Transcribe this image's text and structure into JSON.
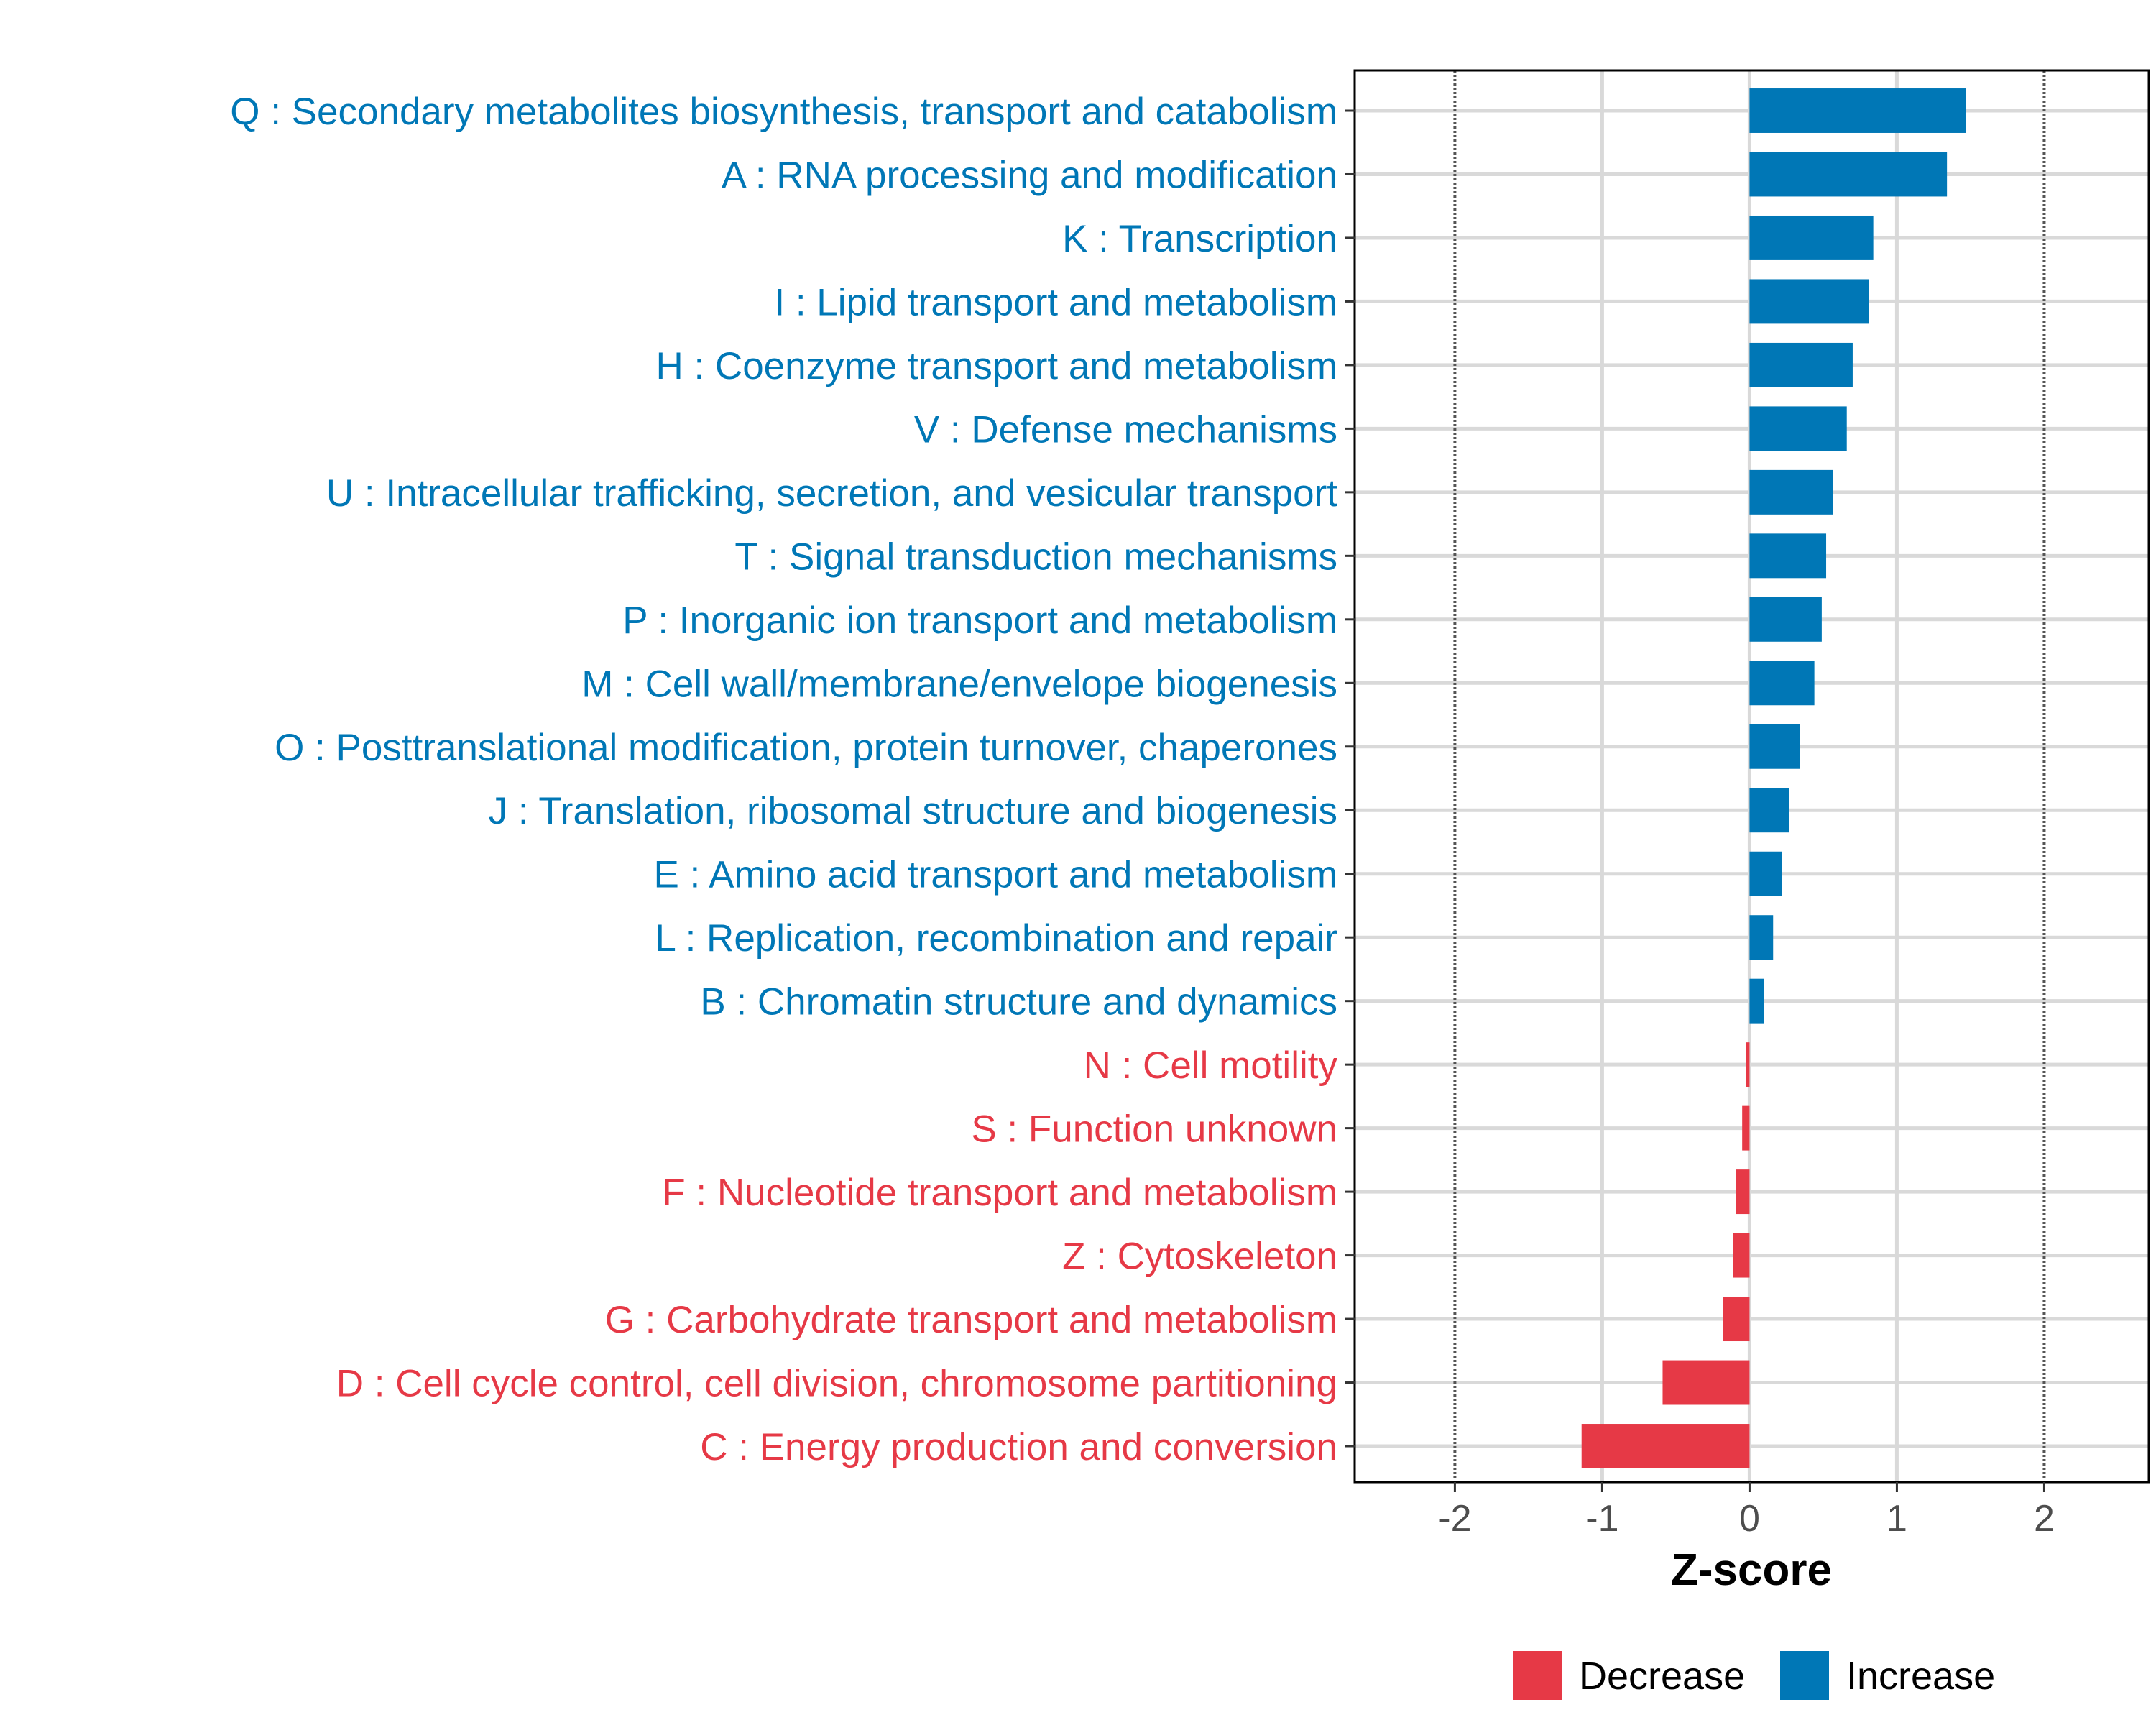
{
  "chart_data": {
    "type": "bar",
    "orientation": "horizontal",
    "xlabel": "Z-score",
    "ylabel": "",
    "xlim": [
      -2.68,
      2.71
    ],
    "xticks": [
      -2,
      -1,
      0,
      1,
      2
    ],
    "xtick_labels": [
      "-2",
      "-1",
      "0",
      "1",
      "2"
    ],
    "reference_lines": [
      -2,
      2
    ],
    "grid": true,
    "legend": {
      "placement": "bottom",
      "entries": [
        {
          "label": "Decrease",
          "color": "#E63946"
        },
        {
          "label": "Increase",
          "color": "#0077B6"
        }
      ]
    },
    "categories": [
      "Q : Secondary metabolites biosynthesis, transport and catabolism",
      "A : RNA processing and modification",
      "K : Transcription",
      "I : Lipid transport and metabolism",
      "H : Coenzyme transport and metabolism",
      "V : Defense mechanisms",
      "U : Intracellular trafficking, secretion, and vesicular transport",
      "T : Signal transduction mechanisms",
      "P : Inorganic ion transport and metabolism",
      "M : Cell wall/membrane/envelope biogenesis",
      "O : Posttranslational modification, protein turnover, chaperones",
      "J : Translation, ribosomal structure and biogenesis",
      "E : Amino acid transport and metabolism",
      "L : Replication, recombination and repair",
      "B : Chromatin structure and dynamics",
      "N : Cell motility",
      "S : Function unknown",
      "F : Nucleotide transport and metabolism",
      "Z : Cytoskeleton",
      "G : Carbohydrate transport and metabolism",
      "D : Cell cycle control, cell division, chromosome partitioning",
      "C : Energy production and conversion"
    ],
    "values": [
      1.47,
      1.34,
      0.84,
      0.81,
      0.7,
      0.66,
      0.565,
      0.52,
      0.49,
      0.44,
      0.34,
      0.27,
      0.22,
      0.16,
      0.1,
      -0.025,
      -0.05,
      -0.09,
      -0.11,
      -0.18,
      -0.59,
      -1.14
    ]
  }
}
